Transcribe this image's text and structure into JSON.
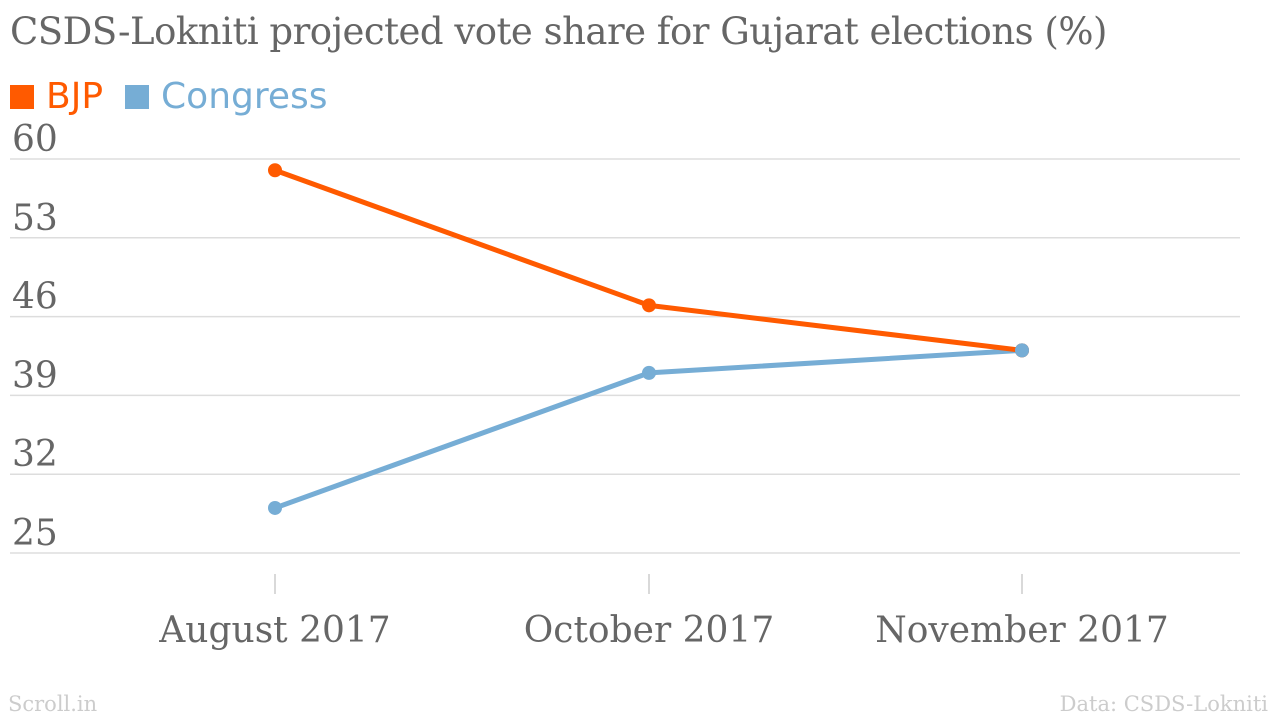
{
  "chart_data": {
    "type": "line",
    "title": "CSDS-Lokniti projected vote share for Gujarat elections (%)",
    "categories": [
      "August 2017",
      "October 2017",
      "November 2017"
    ],
    "series": [
      {
        "name": "BJP",
        "color": "#ff5a00",
        "values": [
          59,
          47,
          43
        ]
      },
      {
        "name": "Congress",
        "color": "#76add5",
        "values": [
          29,
          41,
          43
        ]
      }
    ],
    "yticks": [
      60,
      53,
      46,
      39,
      32,
      25
    ],
    "ylim": [
      25,
      60
    ],
    "xlabel": "",
    "ylabel": "",
    "grid": true,
    "legend": "top-left"
  },
  "footer": {
    "source_brand": "Scroll.in",
    "credit": "Data: CSDS-Lokniti"
  }
}
